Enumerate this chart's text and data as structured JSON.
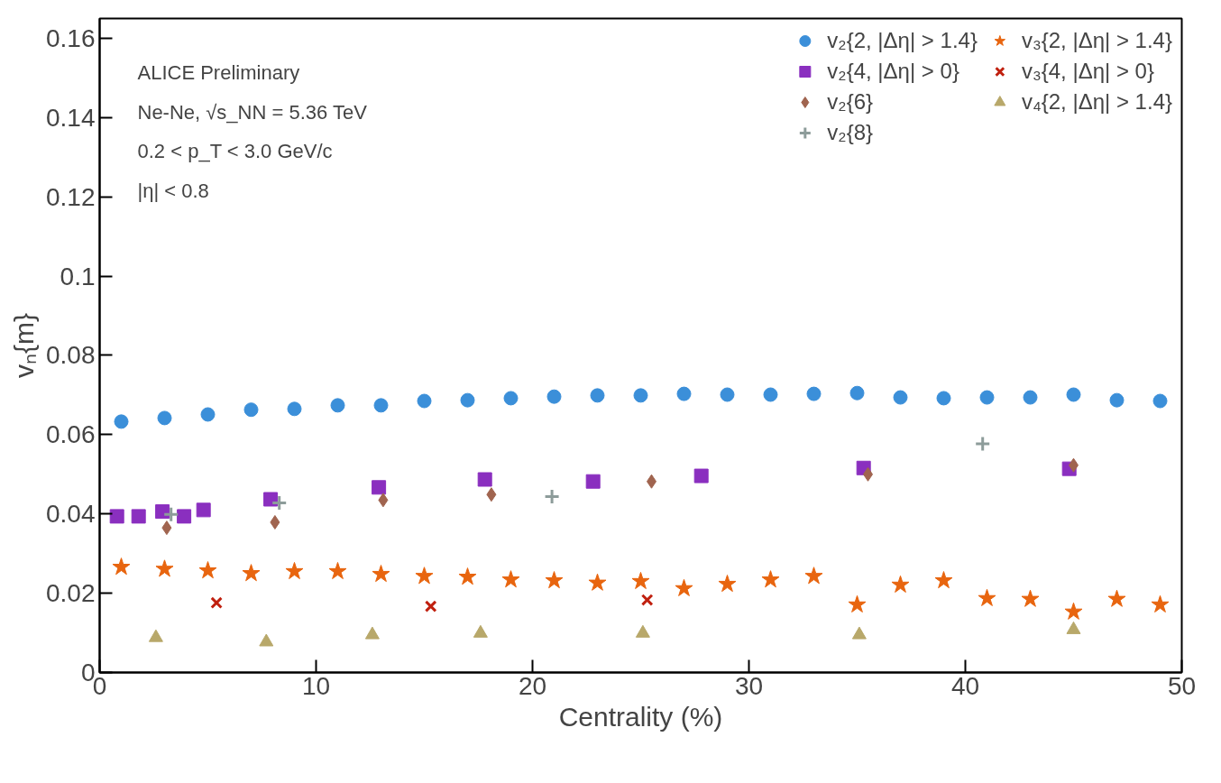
{
  "chart_data": {
    "type": "scatter",
    "xlabel": "Centrality (%)",
    "ylabel": "vₙ{m}",
    "xlim": [
      0,
      50
    ],
    "ylim": [
      0,
      0.165
    ],
    "xticks": [
      0,
      10,
      20,
      30,
      40,
      50
    ],
    "yticks": [
      0,
      0.02,
      0.04,
      0.06,
      0.08,
      0.1,
      0.12,
      0.14,
      0.16
    ],
    "grid": false,
    "legend": "top right",
    "annotations": [
      "ALICE Preliminary",
      "Ne-Ne, √s_NN = 5.36 TeV",
      "0.2 < p_T < 3.0 GeV/c",
      "|η| < 0.8"
    ],
    "series": [
      {
        "name": "v₂{2, |Δη| > 1.4}",
        "color": "#3b8fd9",
        "marker": "circle",
        "x": [
          1,
          3,
          5,
          7,
          9,
          11,
          13,
          15,
          17,
          19,
          21,
          23,
          25,
          27,
          29,
          31,
          33,
          35,
          37,
          39,
          41,
          43,
          45,
          47,
          49
        ],
        "values": [
          0.0633,
          0.0642,
          0.0651,
          0.0663,
          0.0665,
          0.0674,
          0.0674,
          0.0685,
          0.0687,
          0.0692,
          0.0696,
          0.0699,
          0.0699,
          0.0703,
          0.0701,
          0.0701,
          0.0703,
          0.0705,
          0.0694,
          0.0692,
          0.0694,
          0.0694,
          0.0701,
          0.0687,
          0.0685
        ]
      },
      {
        "name": "v₂{4, |Δη| > 0}",
        "color": "#8a2fbf",
        "marker": "square",
        "x": [
          0.8,
          1.8,
          2.9,
          3.9,
          4.8,
          7.9,
          12.9,
          17.8,
          22.8,
          27.8,
          35.3,
          44.8
        ],
        "values": [
          0.0394,
          0.0394,
          0.0406,
          0.0394,
          0.041,
          0.0437,
          0.0467,
          0.0487,
          0.0482,
          0.0496,
          0.0516,
          0.0514
        ]
      },
      {
        "name": "v₂{6}",
        "color": "#a0644f",
        "marker": "diamond",
        "x": [
          3.1,
          8.1,
          13.1,
          18.1,
          25.5,
          35.5,
          45.0
        ],
        "values": [
          0.0365,
          0.0379,
          0.0435,
          0.0449,
          0.0482,
          0.05,
          0.0523
        ]
      },
      {
        "name": "v₂{8}",
        "color": "#8d9c9a",
        "marker": "cross",
        "x": [
          3.3,
          8.3,
          20.9,
          40.8
        ],
        "values": [
          0.0399,
          0.0428,
          0.0444,
          0.0577
        ]
      },
      {
        "name": "v₃{2, |Δη| > 1.4}",
        "color": "#e8650f",
        "marker": "star",
        "x": [
          1,
          3,
          5,
          7,
          9,
          11,
          13,
          15,
          17,
          19,
          21,
          23,
          25,
          27,
          29,
          31,
          33,
          35,
          37,
          39,
          41,
          43,
          45,
          47,
          49
        ],
        "values": [
          0.0266,
          0.0261,
          0.0257,
          0.025,
          0.0255,
          0.0255,
          0.0248,
          0.0243,
          0.0241,
          0.0234,
          0.0232,
          0.0226,
          0.023,
          0.0212,
          0.0223,
          0.0234,
          0.0243,
          0.0171,
          0.0221,
          0.0232,
          0.0187,
          0.0185,
          0.0153,
          0.0185,
          0.0171
        ]
      },
      {
        "name": "v₃{4, |Δη| > 0}",
        "color": "#c0200f",
        "marker": "x",
        "x": [
          5.4,
          15.3,
          25.3
        ],
        "values": [
          0.0176,
          0.0167,
          0.0183
        ]
      },
      {
        "name": "v₄{2, |Δη| > 1.4}",
        "color": "#b8a86a",
        "marker": "triangle",
        "x": [
          2.6,
          7.7,
          12.6,
          17.6,
          25.1,
          35.1,
          45.0
        ],
        "values": [
          0.0088,
          0.0077,
          0.0095,
          0.0099,
          0.0099,
          0.0095,
          0.0108
        ]
      }
    ]
  }
}
